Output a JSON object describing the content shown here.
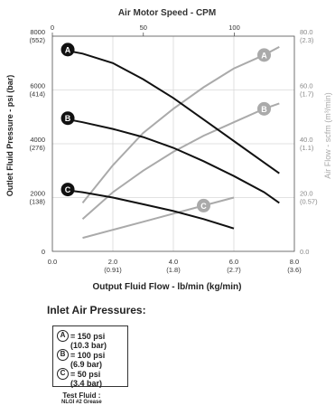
{
  "chart_data": {
    "type": "line",
    "title": "Air Motor Speed  - CPM",
    "xlabel": "Output Fluid Flow  -  lb/min  (kg/min)",
    "ylabel": "Outlet Fluid Pressure  - psi (bar)",
    "y2label": "Air Flow - scfm (m³/min)",
    "xlim": [
      0,
      8
    ],
    "ylim": [
      0,
      8000
    ],
    "y2lim": [
      0,
      80
    ],
    "xticks": [
      {
        "value": 0,
        "label": "0.0",
        "sub": ""
      },
      {
        "value": 2,
        "label": "2.0",
        "sub": "(0.91)"
      },
      {
        "value": 4,
        "label": "4.0",
        "sub": "(1.8)"
      },
      {
        "value": 6,
        "label": "6.0",
        "sub": "(2.7)"
      },
      {
        "value": 8,
        "label": "8.0",
        "sub": "(3.6)"
      }
    ],
    "yticks": [
      {
        "value": 0,
        "label": "0",
        "sub": ""
      },
      {
        "value": 2000,
        "label": "2000",
        "sub": "(138)"
      },
      {
        "value": 4000,
        "label": "4000",
        "sub": "(276)"
      },
      {
        "value": 6000,
        "label": "6000",
        "sub": "(414)"
      },
      {
        "value": 8000,
        "label": "8000",
        "sub": "(552)"
      }
    ],
    "y2ticks": [
      {
        "value": 0,
        "label": "0.0",
        "sub": ""
      },
      {
        "value": 20,
        "label": "20.0",
        "sub": "(0.57)"
      },
      {
        "value": 40,
        "label": "40.0",
        "sub": "(1.1)"
      },
      {
        "value": 60,
        "label": "60.0",
        "sub": "(1.7)"
      },
      {
        "value": 80,
        "label": "80.0",
        "sub": "(2.3)"
      }
    ],
    "topticks": [
      {
        "value": 0,
        "label": "0"
      },
      {
        "value": 50,
        "label": "50"
      },
      {
        "value": 100,
        "label": "100"
      }
    ],
    "top_range": [
      0,
      133
    ],
    "grid": true,
    "pressure_series": [
      {
        "name": "A",
        "x": [
          0.3,
          1.0,
          2.0,
          3.0,
          4.0,
          5.0,
          6.0,
          7.0,
          7.5
        ],
        "y": [
          7500,
          7350,
          7000,
          6400,
          5700,
          4900,
          4100,
          3300,
          2900
        ]
      },
      {
        "name": "B",
        "x": [
          0.3,
          1.0,
          2.0,
          3.0,
          4.0,
          5.0,
          6.0,
          7.0,
          7.5
        ],
        "y": [
          4950,
          4800,
          4550,
          4250,
          3850,
          3350,
          2800,
          2200,
          1800
        ]
      },
      {
        "name": "C",
        "x": [
          0.3,
          1.0,
          2.0,
          3.0,
          4.0,
          5.0,
          6.0
        ],
        "y": [
          2300,
          2200,
          2000,
          1750,
          1500,
          1200,
          850
        ]
      }
    ],
    "air_series": [
      {
        "name": "A",
        "x": [
          1.0,
          2.0,
          3.0,
          4.0,
          5.0,
          6.0,
          7.0,
          7.5
        ],
        "y": [
          18,
          32,
          44,
          53,
          61,
          68,
          73,
          76
        ]
      },
      {
        "name": "B",
        "x": [
          1.0,
          2.0,
          3.0,
          4.0,
          5.0,
          6.0,
          7.0,
          7.5
        ],
        "y": [
          12,
          22,
          30,
          37,
          43,
          48,
          53,
          55
        ]
      },
      {
        "name": "C",
        "x": [
          1.0,
          2.0,
          3.0,
          4.0,
          5.0,
          6.0
        ],
        "y": [
          5,
          8,
          11,
          14,
          17,
          20
        ]
      }
    ],
    "colors": {
      "pressure": "#111111",
      "air": "#aaaaaa",
      "grid": "#d8d8d8",
      "axis": "#555555"
    }
  },
  "legend": {
    "title": "Inlet Air Pressures:",
    "items": [
      {
        "key": "A",
        "line1": "= 150 psi",
        "line2": "(10.3 bar)"
      },
      {
        "key": "B",
        "line1": "= 100 psi",
        "line2": "(6.9 bar)"
      },
      {
        "key": "C",
        "line1": "= 50 psi",
        "line2": "(3.4 bar)"
      }
    ]
  },
  "test_fluid": {
    "label": "Test Fluid :",
    "value": "NLGI #2 Grease"
  }
}
